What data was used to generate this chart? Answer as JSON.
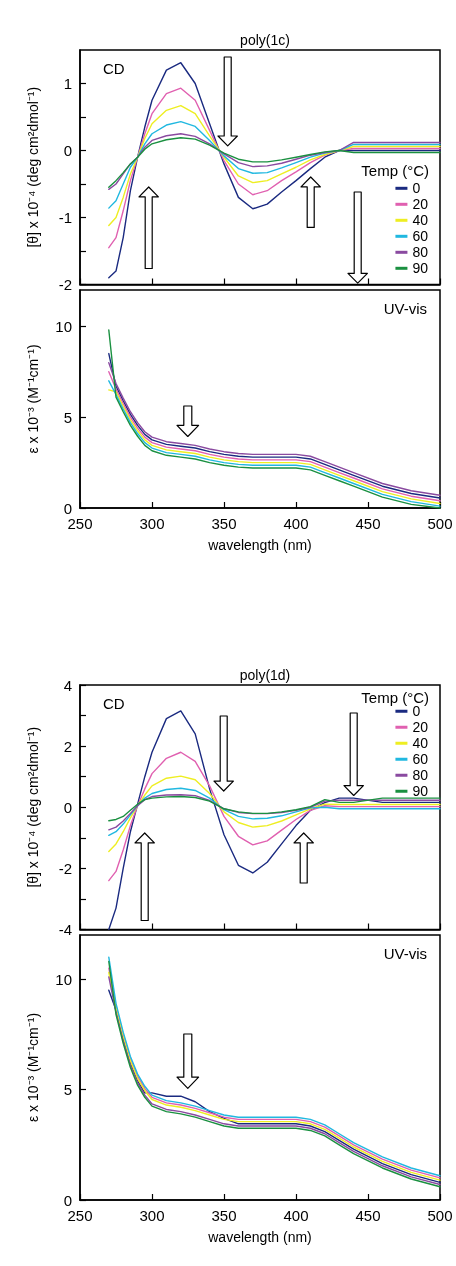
{
  "chart_data": [
    {
      "type": "line",
      "title": "poly(1c)",
      "ylabel": "[θ] x 10⁻⁴ (deg cm²dmol⁻¹)",
      "legend_title": "Temp (°C)",
      "legend": "right",
      "annotations": [
        "CD"
      ],
      "tick_labels": "y",
      "xlim": [
        250,
        500
      ],
      "xticks": [
        250,
        300,
        350,
        400,
        450,
        500
      ],
      "ylim": [
        -2,
        1.5
      ],
      "yticks": [
        -2,
        {
          "value": -1.5,
          "label": null
        },
        -1,
        {
          "value": -0.5,
          "label": null
        },
        0,
        {
          "value": 0.5,
          "label": null
        },
        1
      ],
      "x": [
        270,
        275,
        280,
        285,
        290,
        295,
        300,
        310,
        320,
        330,
        340,
        350,
        360,
        370,
        380,
        390,
        400,
        410,
        420,
        430,
        440,
        460,
        480,
        500
      ],
      "series": [
        {
          "name": "0",
          "color": "#1a2a80",
          "values": [
            -1.9,
            -1.8,
            -1.3,
            -0.6,
            -0.1,
            0.35,
            0.75,
            1.2,
            1.31,
            1.0,
            0.4,
            -0.2,
            -0.7,
            -0.87,
            -0.8,
            -0.62,
            -0.45,
            -0.27,
            -0.1,
            0.0,
            0.0,
            0.0,
            0.0,
            0.0
          ]
        },
        {
          "name": "20",
          "color": "#e060b0",
          "values": [
            -1.45,
            -1.3,
            -0.9,
            -0.45,
            -0.1,
            0.25,
            0.55,
            0.85,
            0.93,
            0.75,
            0.3,
            -0.15,
            -0.5,
            -0.66,
            -0.6,
            -0.45,
            -0.32,
            -0.18,
            -0.07,
            0.0,
            0.03,
            0.03,
            0.03,
            0.03
          ]
        },
        {
          "name": "40",
          "color": "#eeee22",
          "values": [
            -1.12,
            -1.0,
            -0.7,
            -0.35,
            -0.1,
            0.18,
            0.4,
            0.6,
            0.67,
            0.55,
            0.22,
            -0.1,
            -0.38,
            -0.48,
            -0.45,
            -0.35,
            -0.25,
            -0.14,
            -0.06,
            0.0,
            0.06,
            0.06,
            0.06,
            0.06
          ]
        },
        {
          "name": "60",
          "color": "#20b8e0",
          "values": [
            -0.86,
            -0.75,
            -0.5,
            -0.25,
            -0.1,
            0.1,
            0.25,
            0.38,
            0.43,
            0.36,
            0.15,
            -0.08,
            -0.27,
            -0.34,
            -0.33,
            -0.26,
            -0.18,
            -0.1,
            -0.04,
            0.0,
            0.09,
            0.09,
            0.09,
            0.09
          ]
        },
        {
          "name": "80",
          "color": "#8a4aa0",
          "values": [
            -0.58,
            -0.5,
            -0.35,
            -0.2,
            -0.1,
            0.05,
            0.15,
            0.22,
            0.25,
            0.21,
            0.1,
            -0.05,
            -0.18,
            -0.24,
            -0.23,
            -0.19,
            -0.13,
            -0.07,
            -0.03,
            0.0,
            0.12,
            0.12,
            0.12,
            0.12
          ]
        },
        {
          "name": "90",
          "color": "#1a9040",
          "values": [
            -0.55,
            -0.45,
            -0.33,
            -0.2,
            -0.1,
            0.02,
            0.1,
            0.16,
            0.19,
            0.17,
            0.08,
            -0.04,
            -0.13,
            -0.17,
            -0.17,
            -0.14,
            -0.1,
            -0.06,
            -0.02,
            0.0,
            -0.03,
            -0.03,
            -0.03,
            -0.03
          ]
        }
      ]
    },
    {
      "type": "line",
      "xlabel": "wavelength (nm)",
      "ylabel": "ε x 10⁻³ (M⁻¹cm⁻¹)",
      "annotations": [
        "UV-vis"
      ],
      "xlim": [
        250,
        500
      ],
      "xticks": [
        250,
        300,
        350,
        400,
        450,
        500
      ],
      "ylim": [
        0,
        12
      ],
      "yticks": [
        0,
        5,
        10
      ],
      "x": [
        270,
        275,
        280,
        285,
        290,
        295,
        300,
        310,
        320,
        330,
        340,
        350,
        360,
        370,
        380,
        390,
        400,
        410,
        420,
        430,
        440,
        460,
        480,
        500
      ],
      "series": [
        {
          "color": "#1a2a80",
          "values": [
            8.5,
            6.7,
            5.9,
            5.15,
            4.55,
            4.05,
            3.75,
            3.5,
            3.4,
            3.3,
            3.1,
            2.95,
            2.85,
            2.8,
            2.8,
            2.8,
            2.8,
            2.7,
            2.4,
            2.1,
            1.8,
            1.2,
            0.8,
            0.55
          ]
        },
        {
          "color": "#e060b0",
          "values": [
            7.5,
            6.55,
            5.75,
            5.0,
            4.4,
            3.9,
            3.6,
            3.35,
            3.25,
            3.15,
            2.95,
            2.8,
            2.7,
            2.65,
            2.65,
            2.65,
            2.65,
            2.55,
            2.25,
            1.95,
            1.65,
            1.05,
            0.65,
            0.4
          ]
        },
        {
          "color": "#eeee22",
          "values": [
            6.5,
            6.4,
            5.6,
            4.85,
            4.25,
            3.75,
            3.45,
            3.2,
            3.1,
            3.0,
            2.8,
            2.65,
            2.55,
            2.5,
            2.5,
            2.5,
            2.5,
            2.4,
            2.1,
            1.8,
            1.5,
            0.9,
            0.5,
            0.25
          ]
        },
        {
          "color": "#20b8e0",
          "values": [
            7.0,
            6.25,
            5.45,
            4.7,
            4.1,
            3.6,
            3.3,
            3.05,
            2.95,
            2.85,
            2.65,
            2.5,
            2.4,
            2.35,
            2.35,
            2.35,
            2.35,
            2.25,
            1.95,
            1.65,
            1.35,
            0.75,
            0.35,
            0.1
          ]
        },
        {
          "color": "#8a4aa0",
          "values": [
            8.0,
            6.85,
            6.05,
            5.3,
            4.7,
            4.2,
            3.9,
            3.65,
            3.55,
            3.45,
            3.25,
            3.1,
            3.0,
            2.95,
            2.95,
            2.95,
            2.95,
            2.85,
            2.55,
            2.25,
            1.95,
            1.35,
            0.95,
            0.7
          ]
        },
        {
          "color": "#1a9040",
          "values": [
            9.8,
            6.1,
            5.3,
            4.55,
            3.95,
            3.45,
            3.15,
            2.9,
            2.8,
            2.7,
            2.5,
            2.35,
            2.25,
            2.2,
            2.2,
            2.2,
            2.2,
            2.1,
            1.8,
            1.5,
            1.2,
            0.6,
            0.2,
            0.0
          ]
        }
      ]
    },
    {
      "type": "line",
      "title": "poly(1d)",
      "ylabel": "[θ] x 10⁻⁴ (deg cm²dmol⁻¹)",
      "legend_title": "Temp (°C)",
      "legend": "top right",
      "annotations": [
        "CD"
      ],
      "tick_labels": "y",
      "xlim": [
        250,
        500
      ],
      "xticks": [
        250,
        300,
        350,
        400,
        450,
        500
      ],
      "ylim": [
        -4,
        4
      ],
      "yticks": [
        -4,
        {
          "value": -3,
          "label": null
        },
        -2,
        {
          "value": -1,
          "label": null
        },
        0,
        {
          "value": 1,
          "label": null
        },
        2,
        {
          "value": 3,
          "label": null
        },
        4
      ],
      "x": [
        270,
        275,
        280,
        285,
        290,
        295,
        300,
        310,
        320,
        330,
        340,
        350,
        360,
        370,
        380,
        390,
        400,
        410,
        420,
        430,
        440,
        460,
        480,
        500
      ],
      "series": [
        {
          "name": "0",
          "color": "#1a2a80",
          "values": [
            -4.0,
            -3.3,
            -2.0,
            -0.8,
            0.1,
            1.0,
            1.8,
            2.9,
            3.15,
            2.4,
            0.6,
            -0.9,
            -1.9,
            -2.15,
            -1.8,
            -1.2,
            -0.6,
            -0.1,
            0.15,
            0.3,
            0.3,
            0.16,
            0.16,
            0.16
          ]
        },
        {
          "name": "20",
          "color": "#e060b0",
          "values": [
            -2.4,
            -2.1,
            -1.4,
            -0.6,
            0.05,
            0.6,
            1.1,
            1.6,
            1.8,
            1.5,
            0.7,
            -0.3,
            -0.95,
            -1.23,
            -1.1,
            -0.75,
            -0.4,
            -0.1,
            0.05,
            0.02,
            0.02,
            0.02,
            0.02,
            0.02
          ]
        },
        {
          "name": "40",
          "color": "#eeee22",
          "values": [
            -1.45,
            -1.2,
            -0.8,
            -0.35,
            0.05,
            0.4,
            0.7,
            0.95,
            1.02,
            0.9,
            0.45,
            -0.15,
            -0.5,
            -0.65,
            -0.6,
            -0.45,
            -0.25,
            -0.05,
            0.1,
            0.09,
            0.09,
            0.09,
            0.09,
            0.09
          ]
        },
        {
          "name": "60",
          "color": "#20b8e0",
          "values": [
            -0.92,
            -0.8,
            -0.55,
            -0.25,
            0.05,
            0.3,
            0.45,
            0.58,
            0.62,
            0.55,
            0.3,
            -0.08,
            -0.3,
            -0.38,
            -0.36,
            -0.28,
            -0.15,
            -0.02,
            0.0,
            -0.05,
            -0.05,
            -0.05,
            -0.05,
            -0.05
          ]
        },
        {
          "name": "80",
          "color": "#8a4aa0",
          "values": [
            -0.74,
            -0.65,
            -0.45,
            -0.2,
            0.05,
            0.25,
            0.35,
            0.4,
            0.41,
            0.38,
            0.22,
            -0.05,
            -0.17,
            -0.21,
            -0.21,
            -0.17,
            -0.1,
            0.0,
            0.2,
            0.23,
            0.23,
            0.23,
            0.23,
            0.23
          ]
        },
        {
          "name": "90",
          "color": "#1a9040",
          "values": [
            -0.44,
            -0.4,
            -0.3,
            -0.1,
            0.1,
            0.25,
            0.3,
            0.34,
            0.35,
            0.32,
            0.2,
            -0.05,
            -0.15,
            -0.2,
            -0.2,
            -0.15,
            -0.08,
            0.02,
            0.25,
            0.16,
            0.16,
            0.3,
            0.3,
            0.3
          ]
        }
      ]
    },
    {
      "type": "line",
      "xlabel": "wavelength (nm)",
      "ylabel": "ε x 10⁻³ (M⁻¹cm⁻¹)",
      "annotations": [
        "UV-vis"
      ],
      "xlim": [
        250,
        500
      ],
      "xticks": [
        250,
        300,
        350,
        400,
        450,
        500
      ],
      "ylim": [
        0,
        12
      ],
      "yticks": [
        0,
        5,
        10
      ],
      "x": [
        270,
        275,
        280,
        285,
        290,
        295,
        300,
        310,
        320,
        330,
        340,
        350,
        360,
        370,
        380,
        390,
        400,
        410,
        420,
        430,
        440,
        460,
        480,
        500
      ],
      "series": [
        {
          "color": "#1a2a80",
          "values": [
            9.5,
            8.6,
            7.3,
            6.2,
            5.4,
            4.85,
            4.85,
            4.7,
            4.7,
            4.45,
            4.0,
            3.7,
            3.45,
            3.45,
            3.45,
            3.45,
            3.45,
            3.35,
            3.1,
            2.7,
            2.3,
            1.65,
            1.15,
            0.8
          ]
        },
        {
          "color": "#e060b0",
          "values": [
            10.5,
            8.8,
            7.5,
            6.4,
            5.6,
            5.05,
            4.65,
            4.4,
            4.3,
            4.15,
            3.95,
            3.75,
            3.65,
            3.65,
            3.65,
            3.65,
            3.65,
            3.55,
            3.3,
            2.9,
            2.5,
            1.85,
            1.35,
            1.0
          ]
        },
        {
          "color": "#eeee22",
          "values": [
            10.3,
            8.7,
            7.4,
            6.3,
            5.5,
            4.95,
            4.55,
            4.3,
            4.2,
            4.05,
            3.85,
            3.65,
            3.55,
            3.55,
            3.55,
            3.55,
            3.55,
            3.45,
            3.2,
            2.8,
            2.4,
            1.75,
            1.25,
            0.9
          ]
        },
        {
          "color": "#20b8e0",
          "values": [
            11.0,
            8.9,
            7.6,
            6.5,
            5.7,
            5.15,
            4.75,
            4.5,
            4.4,
            4.25,
            4.05,
            3.85,
            3.75,
            3.75,
            3.75,
            3.75,
            3.75,
            3.65,
            3.4,
            3.0,
            2.6,
            1.95,
            1.45,
            1.1
          ]
        },
        {
          "color": "#8a4aa0",
          "values": [
            10.1,
            8.5,
            7.2,
            6.1,
            5.3,
            4.75,
            4.35,
            4.1,
            4.0,
            3.85,
            3.65,
            3.45,
            3.35,
            3.35,
            3.35,
            3.35,
            3.35,
            3.25,
            3.0,
            2.6,
            2.2,
            1.55,
            1.05,
            0.7
          ]
        },
        {
          "color": "#1a9040",
          "values": [
            10.8,
            8.4,
            7.1,
            6.0,
            5.2,
            4.65,
            4.25,
            4.0,
            3.9,
            3.75,
            3.55,
            3.35,
            3.25,
            3.25,
            3.25,
            3.25,
            3.25,
            3.15,
            2.9,
            2.5,
            2.1,
            1.45,
            0.95,
            0.6
          ]
        }
      ]
    }
  ]
}
